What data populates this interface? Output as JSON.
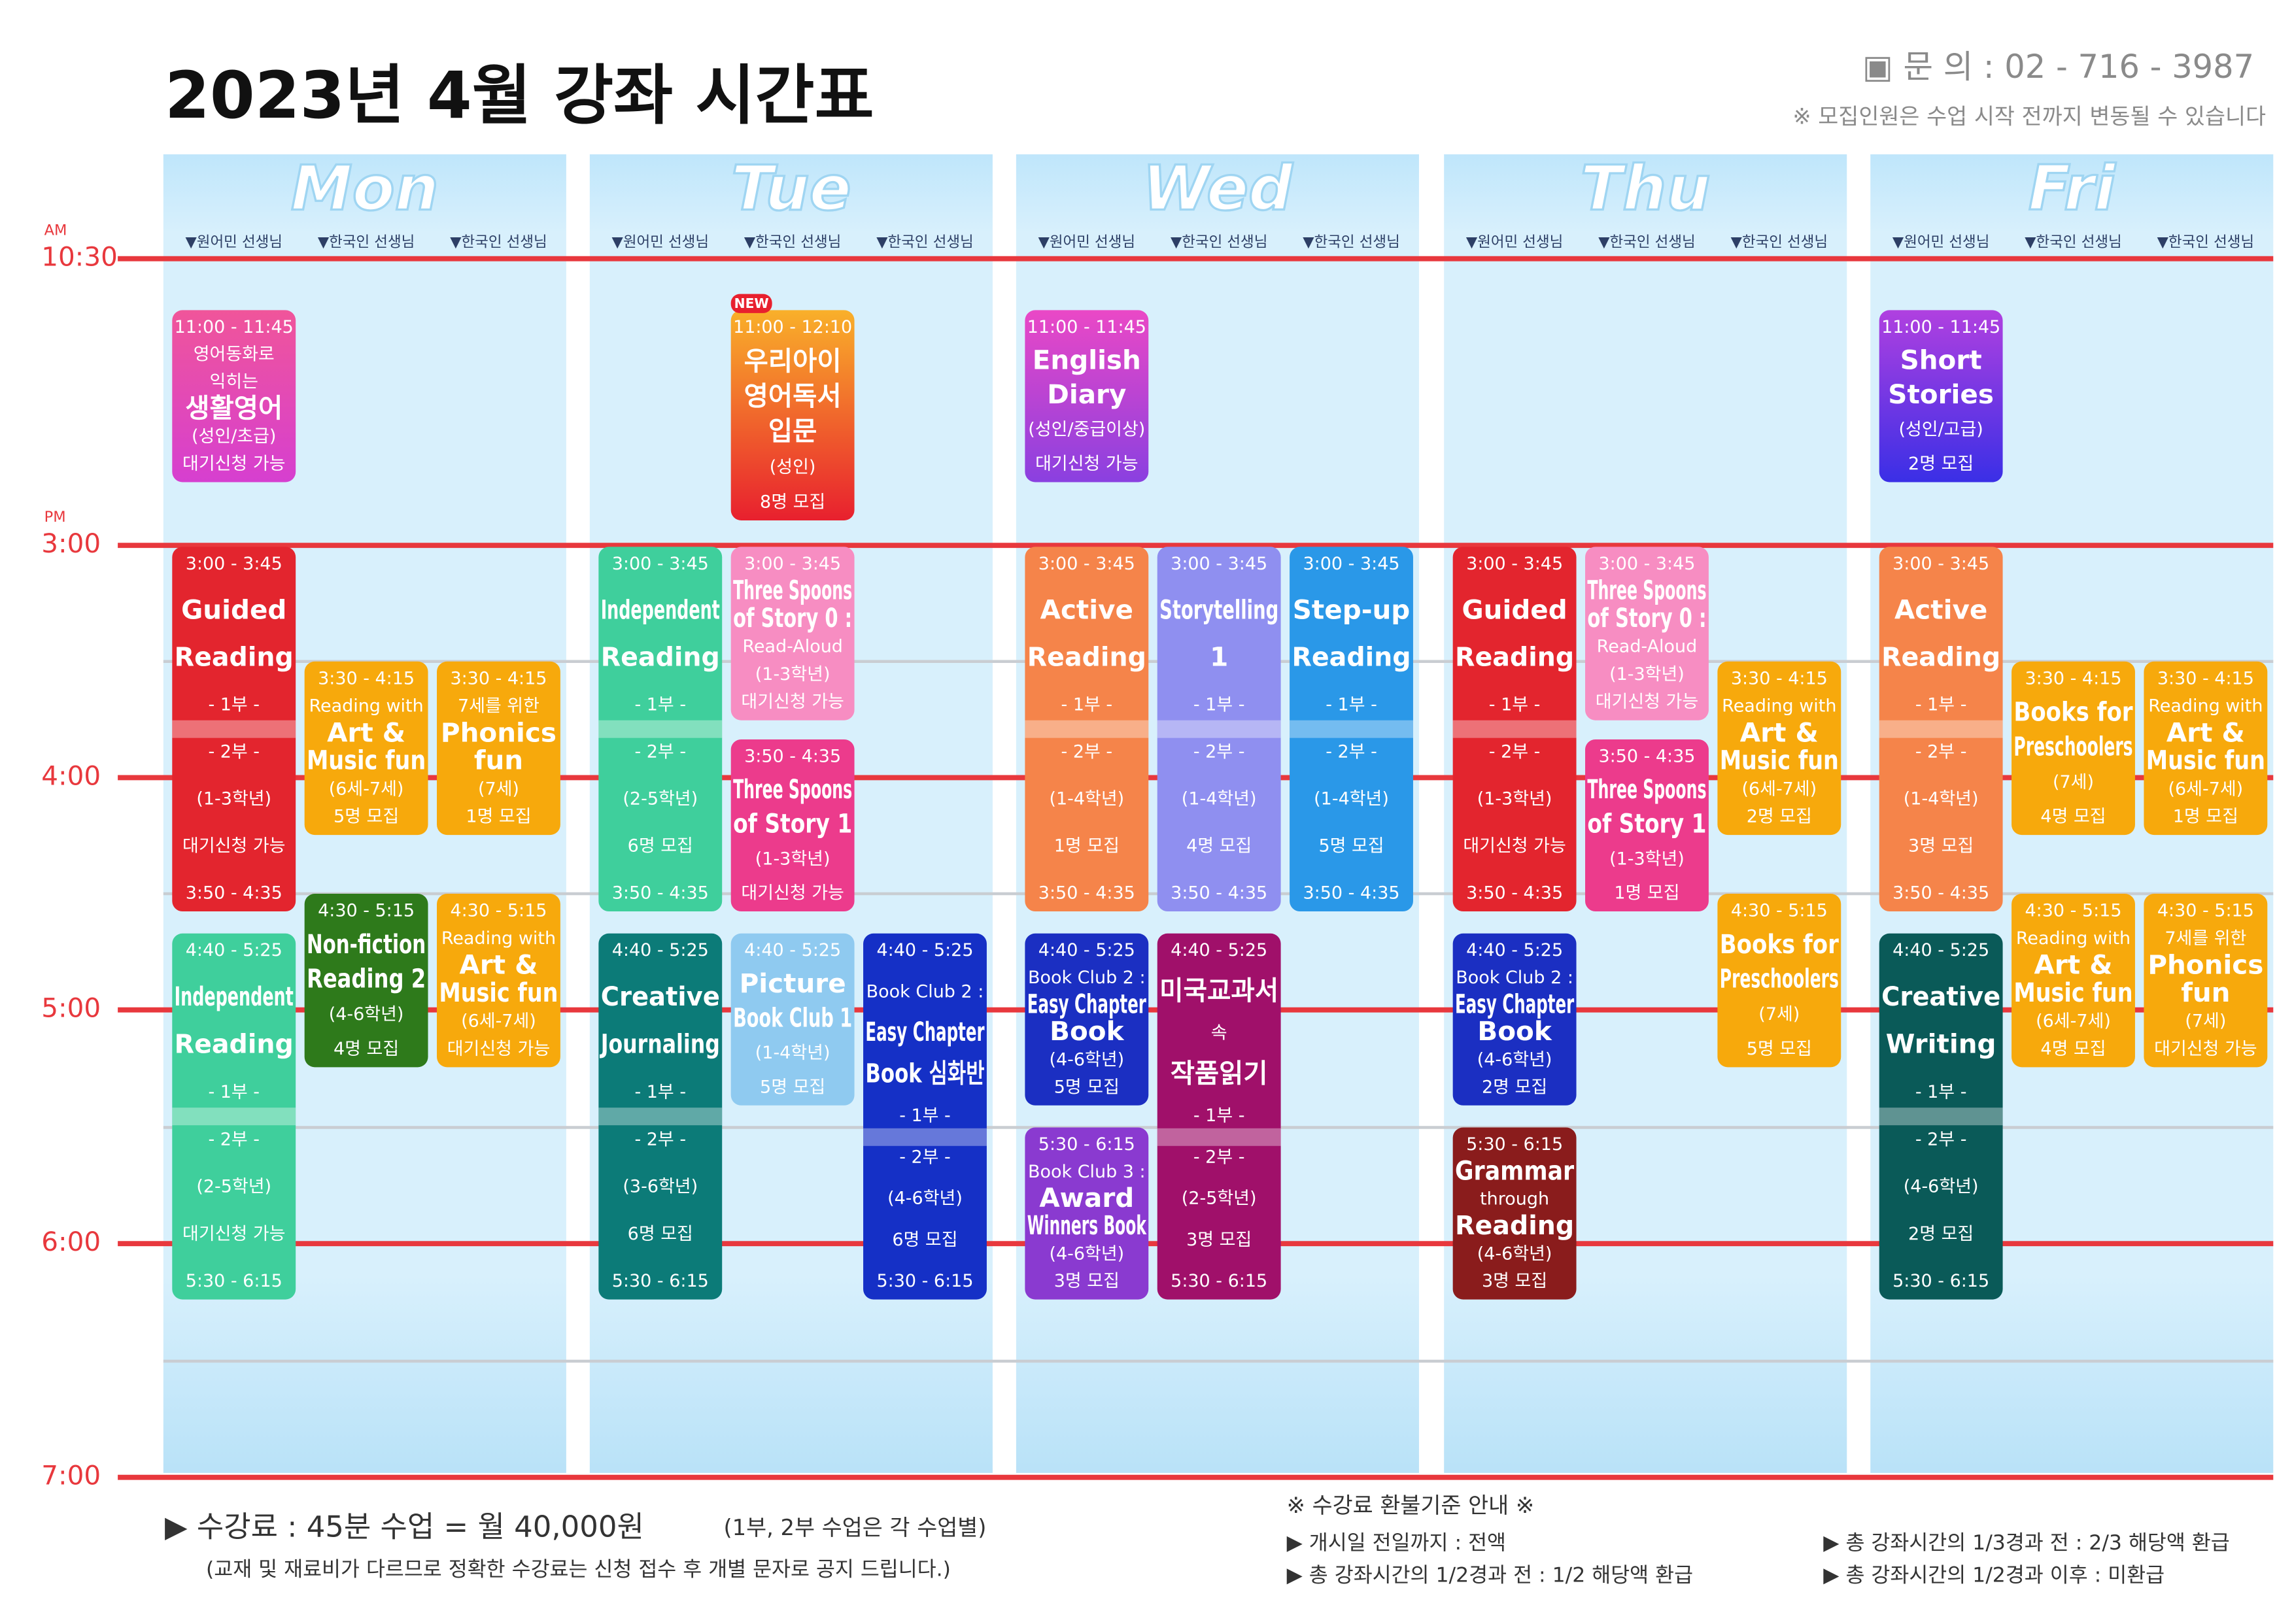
{
  "header": {
    "title": "2023년  4월  강좌 시간표",
    "contact": "▣ 문 의 : 02 - 716 - 3987",
    "note": "※ 모집인원은 수업 시작 전까지 변동될 수 있습니다"
  },
  "time_labels": [
    "AM",
    "10:30",
    "PM",
    "3:00",
    "4:00",
    "5:00",
    "6:00",
    "7:00"
  ],
  "teacher_labels": [
    "▼원어민 선생님",
    "▼한국인 선생님",
    "▼한국인 선생님"
  ],
  "days": [
    {
      "name": "Mon",
      "classes": [
        {
          "lines": [
            "11:00 - 11:45",
            "영어동화로",
            "익히는",
            "생활영어",
            "(성인/초급)",
            "대기신청 가능"
          ]
        },
        {
          "lines": [
            "3:00 - 3:45",
            "Guided",
            "Reading",
            "- 1부 -",
            "- 2부 -",
            "(1-3학년)",
            "대기신청 가능",
            "3:50 - 4:35"
          ]
        },
        {
          "lines": [
            "3:30 - 4:15",
            "Reading with",
            "Art &",
            "Music fun",
            "(6세-7세)",
            "5명 모집"
          ]
        },
        {
          "lines": [
            "3:30 - 4:15",
            "7세를 위한",
            "Phonics",
            "fun",
            "(7세)",
            "1명 모집"
          ]
        },
        {
          "lines": [
            "4:30 - 5:15",
            "Non-fiction",
            "Reading 2",
            "(4-6학년)",
            "4명 모집"
          ]
        },
        {
          "lines": [
            "4:30 - 5:15",
            "Reading with",
            "Art &",
            "Music fun",
            "(6세-7세)",
            "대기신청 가능"
          ]
        },
        {
          "lines": [
            "4:40 - 5:25",
            "Independent",
            "Reading",
            "- 1부 -",
            "- 2부 -",
            "(2-5학년)",
            "대기신청 가능",
            "5:30 - 6:15"
          ]
        }
      ]
    },
    {
      "name": "Tue",
      "classes": [
        {
          "badge": "NEW",
          "lines": [
            "11:00 - 12:10",
            "우리아이",
            "영어독서",
            "입문",
            "(성인)",
            "8명 모집"
          ]
        },
        {
          "lines": [
            "3:00 - 3:45",
            "Independent",
            "Reading",
            "- 1부 -",
            "- 2부 -",
            "(2-5학년)",
            "6명 모집",
            "3:50 - 4:35"
          ]
        },
        {
          "lines": [
            "3:00 - 3:45",
            "Three Spoons",
            "of Story 0 :",
            "Read-Aloud",
            "(1-3학년)",
            "대기신청 가능"
          ]
        },
        {
          "lines": [
            "3:50 - 4:35",
            "Three Spoons",
            "of Story 1",
            "(1-3학년)",
            "대기신청 가능"
          ]
        },
        {
          "lines": [
            "4:40 - 5:25",
            "Creative",
            "Journaling",
            "- 1부 -",
            "- 2부 -",
            "(3-6학년)",
            "6명 모집",
            "5:30 - 6:15"
          ]
        },
        {
          "lines": [
            "4:40 - 5:25",
            "Picture",
            "Book Club 1",
            "(1-4학년)",
            "5명 모집"
          ]
        },
        {
          "lines": [
            "4:40 - 5:25",
            "Book Club 2 :",
            "Easy Chapter",
            "Book 심화반",
            "- 1부 -",
            "- 2부 -",
            "(4-6학년)",
            "6명 모집",
            "5:30 - 6:15"
          ]
        }
      ]
    },
    {
      "name": "Wed",
      "classes": [
        {
          "lines": [
            "11:00 - 11:45",
            "English",
            "Diary",
            "(성인/중급이상)",
            "대기신청 가능"
          ]
        },
        {
          "lines": [
            "3:00 - 3:45",
            "Active",
            "Reading",
            "- 1부 -",
            "- 2부 -",
            "(1-4학년)",
            "1명 모집",
            "3:50 - 4:35"
          ]
        },
        {
          "lines": [
            "3:00 - 3:45",
            "Storytelling",
            "1",
            "- 1부 -",
            "- 2부 -",
            "(1-4학년)",
            "4명 모집",
            "3:50 - 4:35"
          ]
        },
        {
          "lines": [
            "3:00 - 3:45",
            "Step-up",
            "Reading",
            "- 1부 -",
            "- 2부 -",
            "(1-4학년)",
            "5명 모집",
            "3:50 - 4:35"
          ]
        },
        {
          "lines": [
            "4:40 - 5:25",
            "Book Club 2 :",
            "Easy Chapter",
            "Book",
            "(4-6학년)",
            "5명 모집"
          ]
        },
        {
          "lines": [
            "4:40 - 5:25",
            "미국교과서",
            "속",
            "작품읽기",
            "- 1부 -",
            "- 2부 -",
            "(2-5학년)",
            "3명 모집",
            "5:30 - 6:15"
          ]
        },
        {
          "lines": [
            "5:30 - 6:15",
            "Book Club 3 :",
            "Award",
            "Winners Book",
            "(4-6학년)",
            "3명 모집"
          ]
        }
      ]
    },
    {
      "name": "Thu",
      "classes": [
        {
          "lines": [
            "3:00 - 3:45",
            "Guided",
            "Reading",
            "- 1부 -",
            "- 2부 -",
            "(1-3학년)",
            "대기신청 가능",
            "3:50 - 4:35"
          ]
        },
        {
          "lines": [
            "3:00 - 3:45",
            "Three Spoons",
            "of Story 0 :",
            "Read-Aloud",
            "(1-3학년)",
            "대기신청 가능"
          ]
        },
        {
          "lines": [
            "3:50 - 4:35",
            "Three Spoons",
            "of Story 1",
            "(1-3학년)",
            "1명 모집"
          ]
        },
        {
          "lines": [
            "3:30 - 4:15",
            "Reading with",
            "Art &",
            "Music fun",
            "(6세-7세)",
            "2명 모집"
          ]
        },
        {
          "lines": [
            "4:30 - 5:15",
            "Books for",
            "Preschoolers",
            "(7세)",
            "5명 모집"
          ]
        },
        {
          "lines": [
            "4:40 - 5:25",
            "Book Club 2 :",
            "Easy Chapter",
            "Book",
            "(4-6학년)",
            "2명 모집"
          ]
        },
        {
          "lines": [
            "5:30 - 6:15",
            "Grammar",
            "through",
            "Reading",
            "(4-6학년)",
            "3명 모집"
          ]
        }
      ]
    },
    {
      "name": "Fri",
      "classes": [
        {
          "lines": [
            "11:00 - 11:45",
            "Short",
            "Stories",
            "(성인/고급)",
            "2명 모집"
          ]
        },
        {
          "lines": [
            "3:00 - 3:45",
            "Active",
            "Reading",
            "- 1부 -",
            "- 2부 -",
            "(1-4학년)",
            "3명 모집",
            "3:50 - 4:35"
          ]
        },
        {
          "lines": [
            "3:30 - 4:15",
            "Books for",
            "Preschoolers",
            "(7세)",
            "4명 모집"
          ]
        },
        {
          "lines": [
            "3:30 - 4:15",
            "Reading with",
            "Art &",
            "Music fun",
            "(6세-7세)",
            "1명 모집"
          ]
        },
        {
          "lines": [
            "4:40 - 5:25",
            "Creative",
            "Writing",
            "- 1부 -",
            "- 2부 -",
            "(4-6학년)",
            "2명 모집",
            "5:30 - 6:15"
          ]
        },
        {
          "lines": [
            "4:30 - 5:15",
            "Reading with",
            "Art &",
            "Music fun",
            "(6세-7세)",
            "4명 모집"
          ]
        },
        {
          "lines": [
            "4:30 - 5:15",
            "7세를 위한",
            "Phonics",
            "fun",
            "(7세)",
            "대기신청 가능"
          ]
        }
      ]
    }
  ],
  "footer": {
    "fee": "▶ 수강료 : 45분 수업 = 월 40,000원",
    "fee_note": "(1부, 2부 수업은 각 수업별)",
    "material_note": "(교재 및 재료비가 다르므로 정확한 수강료는 신청 접수 후 개별 문자로 공지 드립니다.)",
    "refund_title": "※ 수강료 환불기준 안내 ※",
    "refund_items": [
      "▶ 개시일 전일까지 : 전액",
      "▶ 총 강좌시간의 1/2경과 전 : 1/2 해당액 환급",
      "▶ 총 강좌시간의 1/3경과 전 : 2/3 해당액 환급",
      "▶ 총 강좌시간의 1/2경과 이후 : 미환급"
    ]
  }
}
